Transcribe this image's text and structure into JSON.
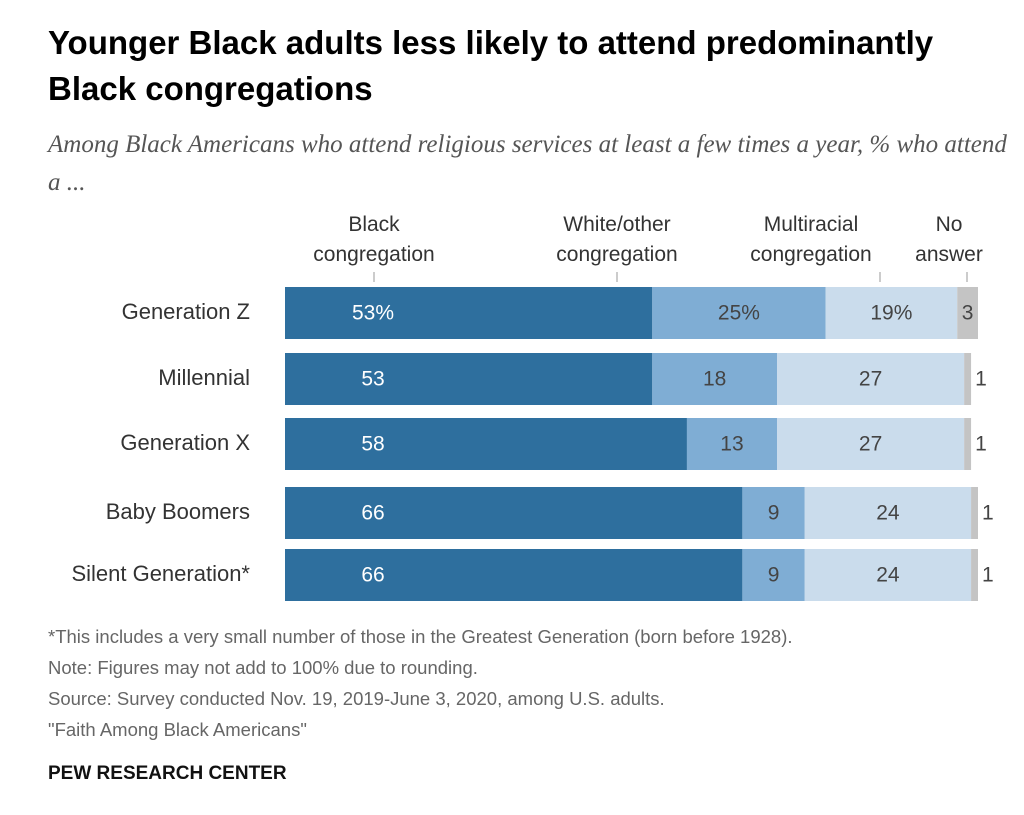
{
  "chart_data": {
    "type": "stacked-bar",
    "orientation": "horizontal",
    "title": "Younger Black adults less likely to attend predominantly Black congregations",
    "subtitle": "Among Black Americans who attend religious services at least a few times a year, % who attend a ...",
    "categories": [
      "Generation Z",
      "Millennial",
      "Generation X",
      "Baby Boomers",
      "Silent Generation*"
    ],
    "xlim": [
      0,
      100
    ],
    "series": [
      {
        "name": "Black congregation",
        "color": "#2e6f9e",
        "values": [
          53,
          53,
          58,
          66,
          66
        ],
        "value_labels": [
          "53%",
          "53",
          "58",
          "66",
          "66"
        ]
      },
      {
        "name": "White/other congregation",
        "color": "#7fadd4",
        "values": [
          25,
          18,
          13,
          9,
          9
        ],
        "value_labels": [
          "25%",
          "18",
          "13",
          "9",
          "9"
        ]
      },
      {
        "name": "Multiracial congregation",
        "color": "#cadcec",
        "values": [
          19,
          27,
          27,
          24,
          24
        ],
        "value_labels": [
          "19%",
          "27",
          "27",
          "24",
          "24"
        ]
      },
      {
        "name": "No answer",
        "color": "#c4c4c4",
        "values": [
          3,
          1,
          1,
          1,
          1
        ]
      }
    ],
    "notes": [
      "*This includes a very small number of those in the Greatest Generation (born before 1928).",
      "Note: Figures may not add to 100% due to rounding.",
      "Source: Survey conducted Nov. 19, 2019-June 3, 2020, among U.S. adults.",
      "\"Faith Among Black Americans\""
    ],
    "credit": "PEW RESEARCH CENTER"
  }
}
